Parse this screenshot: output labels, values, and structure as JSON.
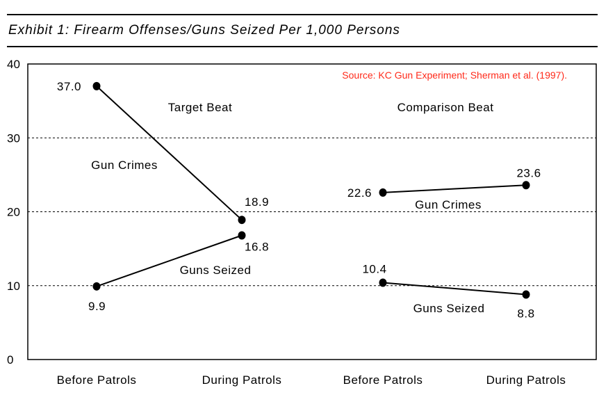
{
  "title": "Exhibit 1: Firearm Offenses/Guns Seized Per 1,000 Persons",
  "source": "Source: KC Gun Experiment; Sherman et al. (1997).",
  "colors": {
    "source_text": "#ff2a1a",
    "lines": "#000000",
    "grid": "#000000"
  },
  "chart_data": {
    "type": "line",
    "title": "Exhibit 1: Firearm Offenses/Guns Seized Per 1,000 Persons",
    "xlabel": "",
    "ylabel": "",
    "ylim": [
      0,
      40
    ],
    "yticks": [
      0,
      10,
      20,
      30,
      40
    ],
    "grid": "dashed horizontal at 10, 20, 30",
    "categories": [
      "Before Patrols",
      "During Patrols",
      "Before Patrols",
      "During Patrols"
    ],
    "panels": [
      {
        "label": "Target Beat",
        "categories": [
          0,
          1
        ]
      },
      {
        "label": "Comparison Beat",
        "categories": [
          2,
          3
        ]
      }
    ],
    "series": [
      {
        "name": "Gun Crimes",
        "panel": "Target Beat",
        "x": [
          0,
          1
        ],
        "values": [
          37.0,
          18.9
        ],
        "labels": [
          "37.0",
          "18.9"
        ]
      },
      {
        "name": "Guns Seized",
        "panel": "Target Beat",
        "x": [
          0,
          1
        ],
        "values": [
          9.9,
          16.8
        ],
        "labels": [
          "9.9",
          "16.8"
        ]
      },
      {
        "name": "Gun Crimes",
        "panel": "Comparison Beat",
        "x": [
          2,
          3
        ],
        "values": [
          22.6,
          23.6
        ],
        "labels": [
          "22.6",
          "23.6"
        ]
      },
      {
        "name": "Guns Seized",
        "panel": "Comparison Beat",
        "x": [
          2,
          3
        ],
        "values": [
          10.4,
          8.8
        ],
        "labels": [
          "10.4",
          "8.8"
        ]
      }
    ]
  }
}
